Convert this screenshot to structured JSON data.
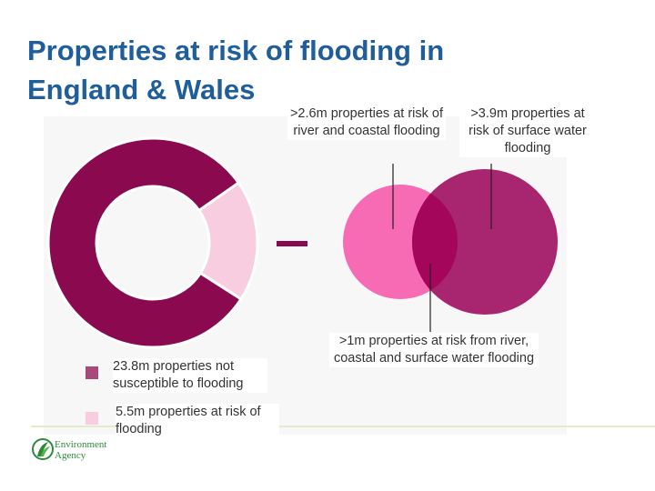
{
  "title": "Properties at risk of flooding in England & Wales",
  "chart_data": [
    {
      "type": "pie",
      "categories": [
        "23.8m properties not susceptible to flooding",
        "5.5m properties at risk of flooding"
      ],
      "values": [
        23.8,
        5.5
      ],
      "colors": [
        "#8b0a4f",
        "#f9cde0"
      ],
      "legend": [
        {
          "label": "23.8m properties not susceptible to flooding",
          "color": "#8b0a4f"
        },
        {
          "label": "5.5m properties at risk of flooding",
          "color": "#f9cde0"
        }
      ]
    },
    {
      "type": "venn",
      "sets": [
        {
          "label": ">2.6m properties at risk of river and coastal flooding",
          "value": 2.6,
          "color": "#f76bb4"
        },
        {
          "label": ">3.9m properties at risk of surface water flooding",
          "value": 3.9,
          "color": "#a8256f"
        }
      ],
      "overlap": {
        "label": ">1m properties at risk from river, coastal and surface water flooding",
        "value": 1,
        "color": "#a3065a"
      }
    }
  ],
  "logo": {
    "line1": "Environment",
    "line2": "Agency",
    "color": "#2c8a3a"
  }
}
